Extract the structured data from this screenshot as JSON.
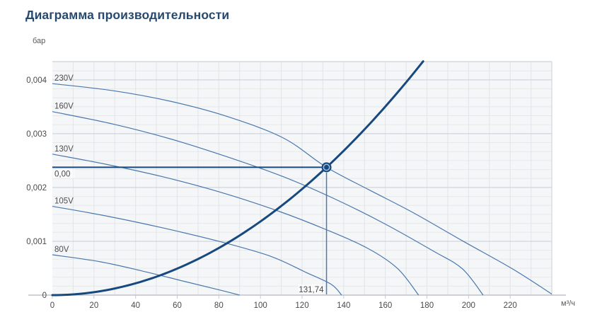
{
  "chart_data": {
    "type": "line",
    "title": "Диаграмма производительности",
    "x_axis": {
      "label": "м³/ч",
      "min": 0,
      "max": 240,
      "minor_step": 10,
      "ticks": [
        {
          "value": 0,
          "label": "0"
        },
        {
          "value": 20,
          "label": "20"
        },
        {
          "value": 40,
          "label": "40"
        },
        {
          "value": 60,
          "label": "60"
        },
        {
          "value": 80,
          "label": "80"
        },
        {
          "value": 100,
          "label": "100"
        },
        {
          "value": 120,
          "label": "120"
        },
        {
          "value": 140,
          "label": "140"
        },
        {
          "value": 160,
          "label": "160"
        },
        {
          "value": 180,
          "label": "180"
        },
        {
          "value": 200,
          "label": "200"
        },
        {
          "value": 220,
          "label": "220"
        }
      ]
    },
    "y_axis": {
      "label": "бар",
      "min": 0,
      "max": 0.00434,
      "major_step": 0.001,
      "minor_divisions": 6,
      "ticks": [
        {
          "value": 0,
          "label": "0"
        },
        {
          "value": 0.001,
          "label": "0,001"
        },
        {
          "value": 0.002,
          "label": "0,002"
        },
        {
          "value": 0.003,
          "label": "0,003"
        },
        {
          "value": 0.004,
          "label": "0,004"
        }
      ]
    },
    "series": [
      {
        "name": "230V",
        "color": "#4a78ad",
        "points": [
          [
            0,
            0.00393
          ],
          [
            29,
            0.0038
          ],
          [
            57,
            0.0036
          ],
          [
            84,
            0.00332
          ],
          [
            111,
            0.00292
          ],
          [
            131.74,
            0.002375
          ],
          [
            152,
            0.00196
          ],
          [
            173,
            0.00154
          ],
          [
            197,
            0.00101
          ],
          [
            221,
            0.00049
          ],
          [
            240,
            2e-05
          ]
        ]
      },
      {
        "name": "160V",
        "color": "#4a78ad",
        "points": [
          [
            0,
            0.00341
          ],
          [
            29,
            0.00318
          ],
          [
            57,
            0.0029
          ],
          [
            84,
            0.00257
          ],
          [
            111,
            0.0022
          ],
          [
            135,
            0.0018
          ],
          [
            159,
            0.00134
          ],
          [
            183,
            0.00082
          ],
          [
            197,
            0.00049
          ],
          [
            207,
            0
          ]
        ]
      },
      {
        "name": "130V",
        "color": "#4a78ad",
        "points": [
          [
            0,
            0.00262
          ],
          [
            26,
            0.00243
          ],
          [
            53,
            0.0022
          ],
          [
            81,
            0.00191
          ],
          [
            108,
            0.00157
          ],
          [
            132,
            0.00121
          ],
          [
            152,
            0.00086
          ],
          [
            166,
            0.00049
          ],
          [
            176,
            0
          ]
        ]
      },
      {
        "name": "105V",
        "color": "#4a78ad",
        "points": [
          [
            0,
            0.00165
          ],
          [
            26,
            0.00147
          ],
          [
            53,
            0.00125
          ],
          [
            81,
            0.00099
          ],
          [
            105,
            0.00072
          ],
          [
            122,
            0.00042
          ],
          [
            134,
            0.0002
          ],
          [
            139,
            0
          ]
        ]
      },
      {
        "name": "80V",
        "color": "#4a78ad",
        "points": [
          [
            0,
            0.00075
          ],
          [
            23,
            0.00062
          ],
          [
            43,
            0.00045
          ],
          [
            64,
            0.00025
          ],
          [
            81,
            9e-05
          ],
          [
            90,
            0
          ]
        ]
      }
    ],
    "system_curve": {
      "color": "#17497e",
      "exponent": 2,
      "through_point": [
        131.74,
        0.002375
      ]
    },
    "operating_point": {
      "flow": 131.74,
      "pressure": 0.002375,
      "flow_label": "131,74",
      "pressure_label": "0,00",
      "marker_color": "#17497e",
      "drop_line_color": "#4d7bb0"
    },
    "grid": {
      "plot_background": "#f5f6f8",
      "minor_h_color": "#e7e8eb",
      "minor_v_color": "#e2e4e8",
      "major_h_color": "#c6ccd6",
      "border_color": "#d3d5da",
      "axis_color": "#b4b8bf",
      "tick_color": "#c6c9cf",
      "tick_text_color": "#4a4a4a",
      "curve_label_color": "#4f4f4f"
    }
  }
}
